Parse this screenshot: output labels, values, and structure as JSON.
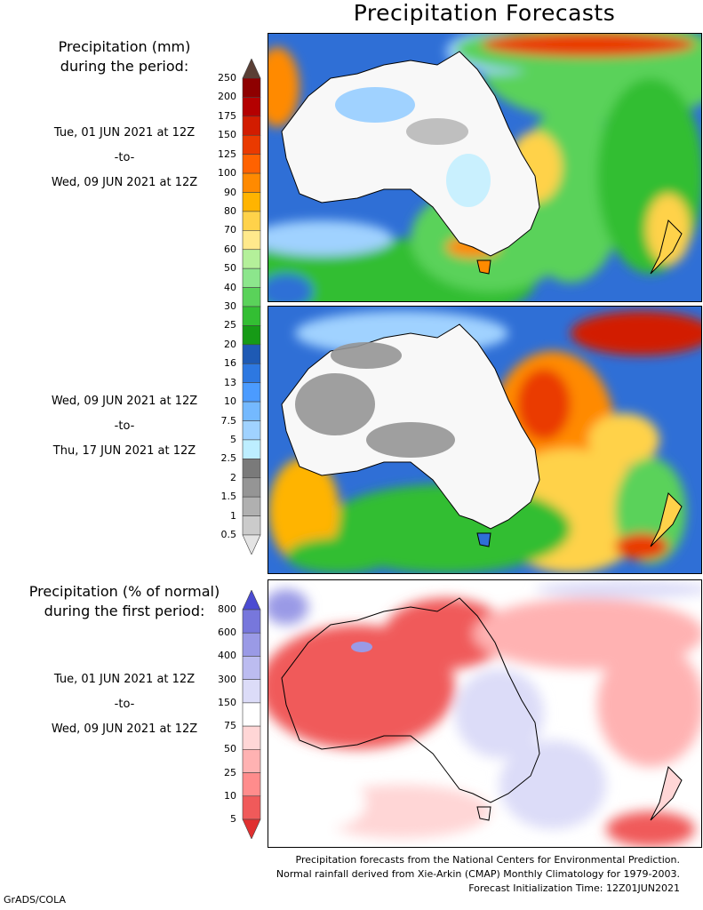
{
  "title": "Precipitation Forecasts",
  "top_heading": [
    "Precipitation (mm)",
    "during the period:"
  ],
  "period1": {
    "start": "Tue, 01 JUN 2021 at 12Z",
    "sep": "-to-",
    "end": "Wed, 09 JUN 2021 at 12Z"
  },
  "period2": {
    "start": "Wed, 09 JUN 2021 at 12Z",
    "sep": "-to-",
    "end": "Thu, 17 JUN 2021 at 12Z"
  },
  "bottom_heading": [
    "Precipitation (% of normal)",
    "during the first period:"
  ],
  "period3": {
    "start": "Tue, 01 JUN 2021 at 12Z",
    "sep": "-to-",
    "end": "Wed, 09 JUN 2021 at 12Z"
  },
  "mm_scale": {
    "labels": [
      "250",
      "200",
      "175",
      "150",
      "125",
      "100",
      "90",
      "80",
      "70",
      "60",
      "50",
      "40",
      "30",
      "25",
      "20",
      "16",
      "13",
      "10",
      "7.5",
      "5",
      "2.5",
      "2",
      "1.5",
      "1",
      "0.5"
    ],
    "colors": [
      "#5a3f35",
      "#8e0000",
      "#b40000",
      "#d21c00",
      "#ea3a00",
      "#ff6200",
      "#ff8a00",
      "#ffb400",
      "#ffd24a",
      "#ffe98c",
      "#b4f09a",
      "#8ce68c",
      "#5ad25a",
      "#33be33",
      "#169a16",
      "#1e5ab4",
      "#2d78e1",
      "#4b9bff",
      "#74b9ff",
      "#a0d2ff",
      "#bdeeff",
      "#7a7a7a",
      "#959595",
      "#b0b0b0",
      "#cbcbcb",
      "#e4e4e4"
    ]
  },
  "pct_scale": {
    "labels": [
      "800",
      "600",
      "400",
      "300",
      "150",
      "75",
      "50",
      "25",
      "10",
      "5"
    ],
    "colors": [
      "#4b4bd2",
      "#7777dc",
      "#9a9ae6",
      "#bcbcf0",
      "#dcdcf8",
      "#ffffff",
      "#ffd6d6",
      "#ffb2b2",
      "#ff8c8c",
      "#f05a5a",
      "#e03030"
    ]
  },
  "footer": [
    "Precipitation forecasts from the National Centers for Environmental Prediction.",
    "Normal rainfall derived from Xie-Arkin (CMAP) Monthly Climatology for 1979-2003.",
    "Forecast Initialization Time: 12Z01JUN2021"
  ],
  "credit": "GrADS/COLA"
}
